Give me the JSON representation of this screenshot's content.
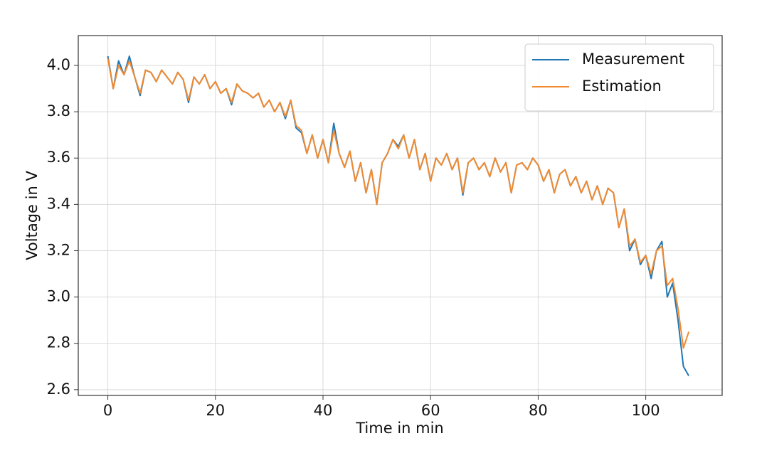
{
  "chart_data": {
    "type": "line",
    "xlabel": "Time in min",
    "ylabel": "Voltage in V",
    "x": [
      0,
      1,
      2,
      3,
      4,
      5,
      6,
      7,
      8,
      9,
      10,
      11,
      12,
      13,
      14,
      15,
      16,
      17,
      18,
      19,
      20,
      21,
      22,
      23,
      24,
      25,
      26,
      27,
      28,
      29,
      30,
      31,
      32,
      33,
      34,
      35,
      36,
      37,
      38,
      39,
      40,
      41,
      42,
      43,
      44,
      45,
      46,
      47,
      48,
      49,
      50,
      51,
      52,
      53,
      54,
      55,
      56,
      57,
      58,
      59,
      60,
      61,
      62,
      63,
      64,
      65,
      66,
      67,
      68,
      69,
      70,
      71,
      72,
      73,
      74,
      75,
      76,
      77,
      78,
      79,
      80,
      81,
      82,
      83,
      84,
      85,
      86,
      87,
      88,
      89,
      90,
      91,
      92,
      93,
      94,
      95,
      96,
      97,
      98,
      99,
      100,
      101,
      102,
      103,
      104,
      105,
      106,
      107,
      108
    ],
    "series": [
      {
        "name": "Measurement",
        "color": "#1f77b4",
        "values": [
          4.04,
          3.9,
          4.02,
          3.96,
          4.04,
          3.95,
          3.87,
          3.98,
          3.97,
          3.93,
          3.98,
          3.95,
          3.92,
          3.97,
          3.94,
          3.84,
          3.95,
          3.92,
          3.96,
          3.9,
          3.93,
          3.88,
          3.9,
          3.83,
          3.92,
          3.89,
          3.88,
          3.86,
          3.88,
          3.82,
          3.85,
          3.8,
          3.84,
          3.77,
          3.85,
          3.73,
          3.71,
          3.62,
          3.7,
          3.6,
          3.68,
          3.58,
          3.75,
          3.62,
          3.56,
          3.63,
          3.5,
          3.58,
          3.45,
          3.55,
          3.4,
          3.58,
          3.62,
          3.68,
          3.65,
          3.7,
          3.6,
          3.68,
          3.55,
          3.62,
          3.5,
          3.6,
          3.57,
          3.62,
          3.55,
          3.6,
          3.44,
          3.58,
          3.6,
          3.55,
          3.58,
          3.52,
          3.6,
          3.54,
          3.58,
          3.45,
          3.57,
          3.58,
          3.55,
          3.6,
          3.57,
          3.5,
          3.55,
          3.45,
          3.53,
          3.55,
          3.48,
          3.52,
          3.45,
          3.5,
          3.42,
          3.48,
          3.4,
          3.47,
          3.45,
          3.3,
          3.38,
          3.2,
          3.25,
          3.14,
          3.18,
          3.08,
          3.2,
          3.24,
          3.0,
          3.06,
          2.9,
          2.7,
          2.66
        ]
      },
      {
        "name": "Estimation",
        "color": "#f28a30",
        "values": [
          4.03,
          3.9,
          4.0,
          3.96,
          4.02,
          3.95,
          3.88,
          3.98,
          3.97,
          3.93,
          3.98,
          3.95,
          3.92,
          3.97,
          3.94,
          3.85,
          3.95,
          3.92,
          3.96,
          3.9,
          3.93,
          3.88,
          3.9,
          3.84,
          3.92,
          3.89,
          3.88,
          3.86,
          3.88,
          3.82,
          3.85,
          3.8,
          3.84,
          3.78,
          3.85,
          3.74,
          3.72,
          3.62,
          3.7,
          3.6,
          3.68,
          3.58,
          3.72,
          3.62,
          3.56,
          3.63,
          3.5,
          3.58,
          3.45,
          3.55,
          3.4,
          3.58,
          3.62,
          3.68,
          3.64,
          3.7,
          3.6,
          3.68,
          3.55,
          3.62,
          3.5,
          3.6,
          3.57,
          3.62,
          3.55,
          3.6,
          3.45,
          3.58,
          3.6,
          3.55,
          3.58,
          3.52,
          3.6,
          3.54,
          3.58,
          3.45,
          3.57,
          3.58,
          3.55,
          3.6,
          3.57,
          3.5,
          3.55,
          3.45,
          3.53,
          3.55,
          3.48,
          3.52,
          3.45,
          3.5,
          3.42,
          3.48,
          3.4,
          3.47,
          3.45,
          3.3,
          3.38,
          3.22,
          3.25,
          3.15,
          3.18,
          3.1,
          3.2,
          3.22,
          3.05,
          3.08,
          2.95,
          2.78,
          2.85
        ]
      }
    ],
    "xlim": [
      -5.5,
      114.2
    ],
    "ylim": [
      2.575,
      4.129
    ],
    "xticks": [
      0,
      20,
      40,
      60,
      80,
      100
    ],
    "yticks": [
      2.6,
      2.8,
      {
        "value": 3,
        "label": "3.0"
      },
      3.2,
      3.4,
      3.6,
      3.8,
      {
        "value": 4,
        "label": "4.0"
      }
    ],
    "grid": true,
    "legend": "upper right"
  }
}
